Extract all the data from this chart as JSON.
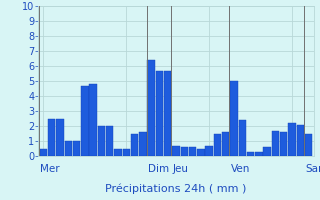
{
  "values": [
    0.5,
    2.5,
    2.5,
    1.0,
    1.0,
    4.7,
    4.8,
    2.0,
    2.0,
    0.5,
    0.5,
    1.5,
    1.6,
    6.4,
    5.7,
    5.7,
    0.7,
    0.6,
    0.6,
    0.5,
    0.7,
    1.5,
    1.6,
    5.0,
    2.4,
    0.3,
    0.3,
    0.6,
    1.7,
    1.6,
    2.2,
    2.1,
    1.5
  ],
  "day_labels": [
    "Mer",
    "Dim",
    "Jeu",
    "Ven",
    "Sam"
  ],
  "day_positions": [
    0,
    13,
    16,
    23,
    32
  ],
  "xlabel": "Précipitations 24h ( mm )",
  "ylim": [
    0,
    10
  ],
  "yticks": [
    0,
    1,
    2,
    3,
    4,
    5,
    6,
    7,
    8,
    9,
    10
  ],
  "bar_color": "#1e5cdd",
  "bar_edge_color": "#1040bb",
  "bg_color": "#d8f5f5",
  "grid_color": "#b8d8d8",
  "vline_color": "#707070",
  "text_color": "#1e4cbf",
  "xlabel_fontsize": 8,
  "tick_fontsize": 7,
  "day_label_fontsize": 7.5
}
